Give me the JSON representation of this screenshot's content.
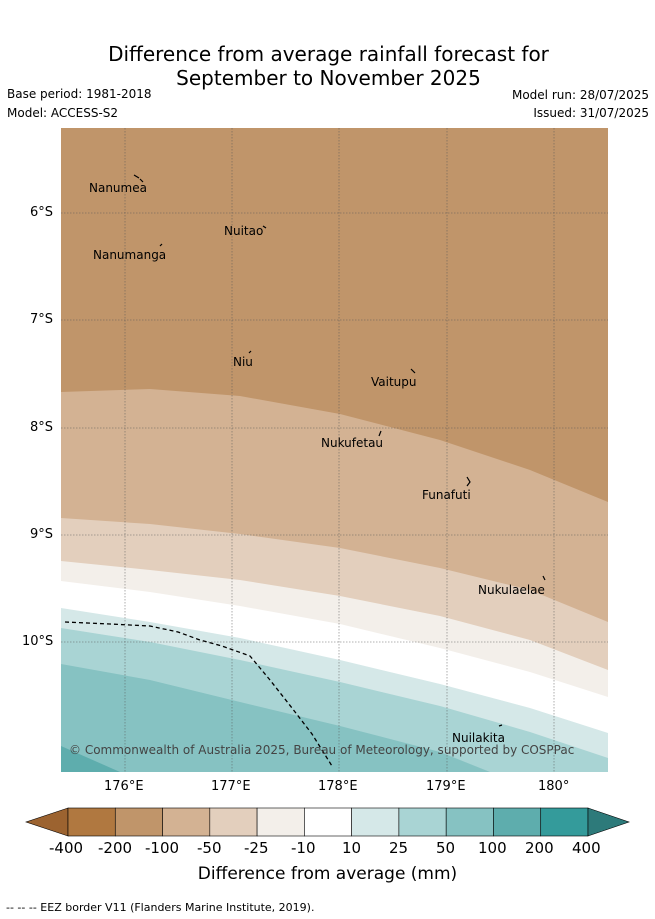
{
  "title_line1": "Difference from average rainfall forecast for",
  "title_line2": "September to November 2025",
  "base_period": "Base period: 1981-2018",
  "model": "Model: ACCESS-S2",
  "model_run": "Model run: 28/07/2025",
  "issued": "Issued: 31/07/2025",
  "map": {
    "lat_ticks": [
      "6°S",
      "7°S",
      "8°S",
      "9°S",
      "10°S"
    ],
    "lon_ticks": [
      "176°E",
      "177°E",
      "178°E",
      "179°E",
      "180°"
    ],
    "islands": [
      "Nanumea",
      "Nuitao",
      "Nanumanga",
      "Niu",
      "Vaitupu",
      "Nukufetau",
      "Funafuti",
      "Nukulaelae",
      "Nuilakita"
    ],
    "copyright": "© Commonwealth of Australia 2025, Bureau of Meteorology, supported by COSPPac"
  },
  "colorbar": {
    "labels": [
      "-400",
      "-200",
      "-100",
      "-50",
      "-25",
      "-10",
      "10",
      "25",
      "50",
      "100",
      "200",
      "400"
    ],
    "colors": [
      "#b07840",
      "#c0956a",
      "#d3b293",
      "#e3cfbd",
      "#f3efea",
      "#ffffff",
      "#d5e8e8",
      "#a9d4d4",
      "#86c2c2",
      "#5eadad",
      "#349b9b"
    ],
    "low_extend_color": "#9c6330",
    "high_extend_color": "#2d7a7a",
    "title": "Difference from average (mm)"
  },
  "footer": "--  --  -- EEZ border V11 (Flanders Marine Institute, 2019)."
}
